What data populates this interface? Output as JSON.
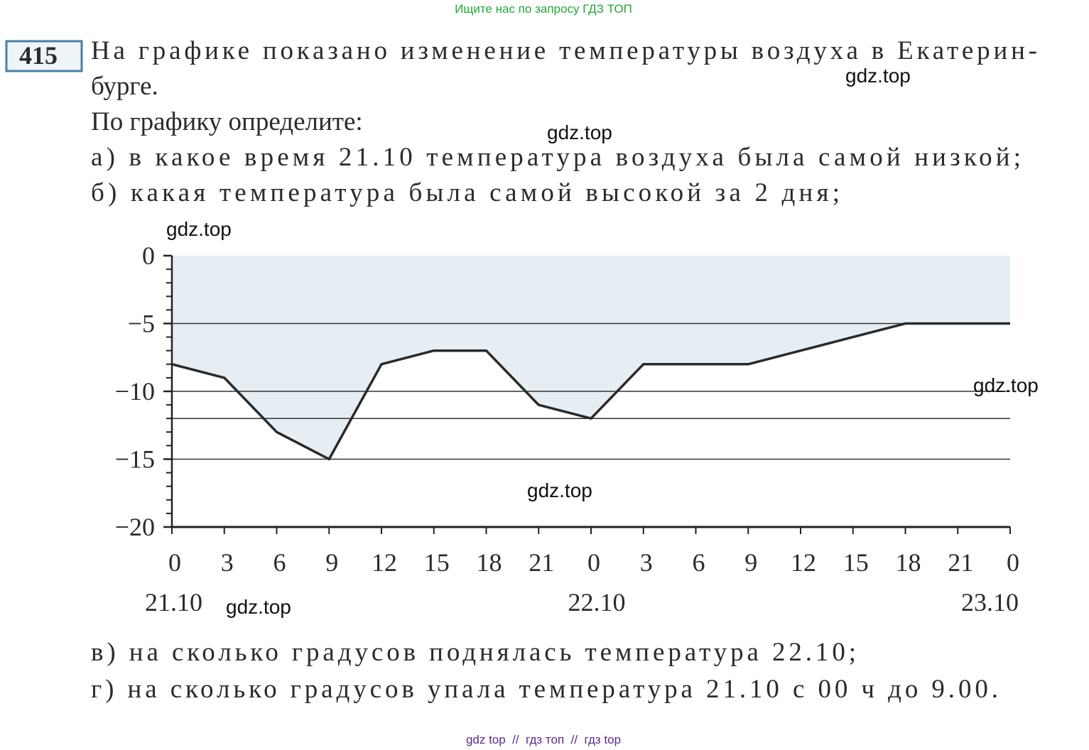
{
  "header": {
    "banner": "Ищите нас по запросу ГДЗ ТОП"
  },
  "problem": {
    "number": "415",
    "lines": [
      "На графике показано изменение температуры воздуха в Екатерин-",
      "бурге.",
      "По графику определите:",
      "а) в какое время 21.10 температура воздуха была самой низкой;",
      "б) какая температура была самой высокой за 2 дня;",
      "в) на сколько градусов поднялась температура 22.10;",
      "г) на сколько градусов упала температура 21.10 с 00 ч до 9.00."
    ]
  },
  "watermarks": [
    "gdz.top",
    "gdz.top",
    "gdz.top",
    "gdz.top",
    "gdz.top",
    "gdz.top"
  ],
  "footer": "gdz top  //  гдз топ  //  гдз top",
  "chart_data": {
    "type": "line",
    "categories": [
      "0",
      "3",
      "6",
      "9",
      "12",
      "15",
      "18",
      "21",
      "0",
      "3",
      "6",
      "9",
      "12",
      "15",
      "18",
      "21",
      "0"
    ],
    "x_groups": [
      "21.10",
      "22.10",
      "23.10"
    ],
    "values": [
      -8,
      -9,
      -13,
      -15,
      -8,
      -7,
      -7,
      -11,
      -12,
      -8,
      -8,
      -8,
      -7,
      -6,
      -5,
      -5,
      -5
    ],
    "color": "#2a2a2a",
    "fill_color": "#e6eef4",
    "ylim": [
      -20,
      0
    ],
    "yticks": [
      0,
      {
        "value": -5,
        "label": "−5"
      },
      {
        "value": -10,
        "label": "−10"
      },
      {
        "value": -15,
        "label": "−15"
      },
      {
        "value": -20,
        "label": "−20"
      }
    ],
    "hlines": [
      -5,
      -10,
      -12,
      -15
    ]
  }
}
